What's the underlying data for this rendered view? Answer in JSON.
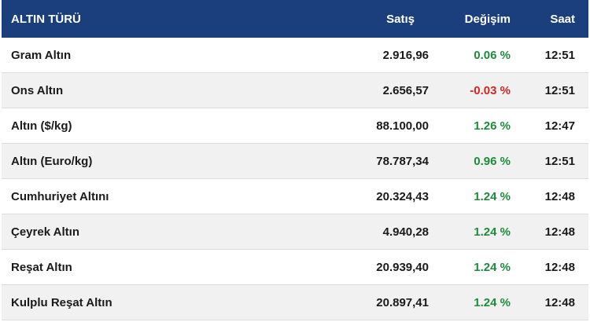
{
  "header": {
    "name": "ALTIN TÜRÜ",
    "sell": "Satış",
    "change": "Değişim",
    "time": "Saat"
  },
  "rows": [
    {
      "name": "Gram Altın",
      "sell": "2.916,96",
      "change": "0.06 %",
      "time": "12:51",
      "direction": "up"
    },
    {
      "name": "Ons Altın",
      "sell": "2.656,57",
      "change": "-0.03 %",
      "time": "12:51",
      "direction": "down"
    },
    {
      "name": "Altın ($/kg)",
      "sell": "88.100,00",
      "change": "1.26 %",
      "time": "12:47",
      "direction": "up"
    },
    {
      "name": "Altın (Euro/kg)",
      "sell": "78.787,34",
      "change": "0.96 %",
      "time": "12:51",
      "direction": "up"
    },
    {
      "name": "Cumhuriyet Altını",
      "sell": "20.324,43",
      "change": "1.24 %",
      "time": "12:48",
      "direction": "up"
    },
    {
      "name": "Çeyrek Altın",
      "sell": "4.940,28",
      "change": "1.24 %",
      "time": "12:48",
      "direction": "up"
    },
    {
      "name": "Reşat Altın",
      "sell": "20.939,40",
      "change": "1.24 %",
      "time": "12:48",
      "direction": "up"
    },
    {
      "name": "Kulplu Reşat Altın",
      "sell": "20.897,41",
      "change": "1.24 %",
      "time": "12:48",
      "direction": "up"
    }
  ],
  "colors": {
    "header_bg": "#1b3f7c",
    "positive": "#1e8a3c",
    "negative": "#d42424"
  }
}
